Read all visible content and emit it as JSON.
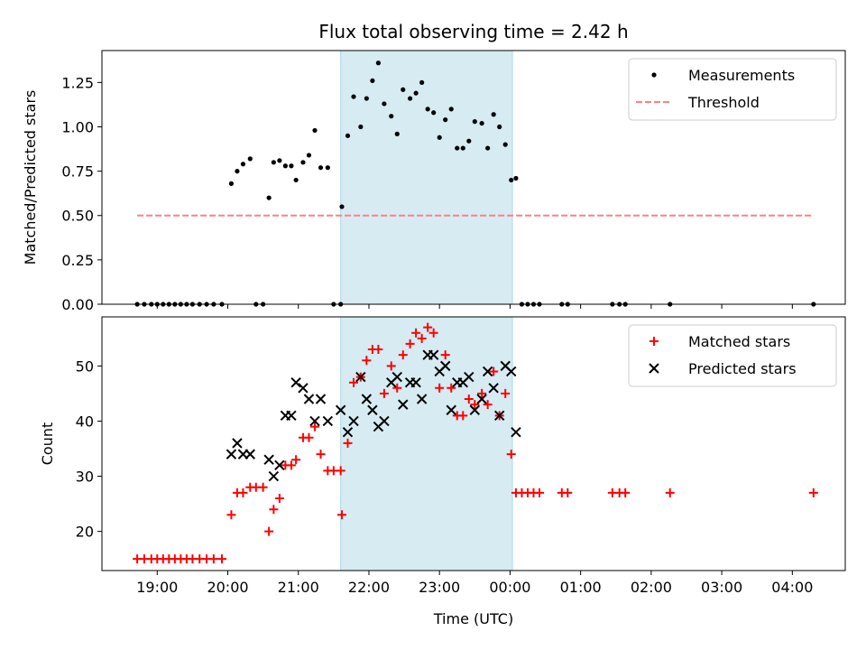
{
  "chart_data": {
    "title": "Flux total observing time = 2.42 h",
    "type": "scatter",
    "x_axis": {
      "label": "Time (UTC)",
      "unit": "hours since 18:00 UTC shown as clock times",
      "xlim": [
        "18:13",
        "04:45"
      ],
      "ticks": [
        "19:00",
        "20:00",
        "21:00",
        "22:00",
        "23:00",
        "00:00",
        "01:00",
        "02:00",
        "03:00",
        "04:00"
      ]
    },
    "highlight_band": {
      "start": "21:36",
      "end": "00:02",
      "color": "#add8e6"
    },
    "panels": [
      {
        "name": "ratio",
        "ylabel": "Matched/Predicted stars",
        "ylim": [
          0,
          1.43
        ],
        "yticks": [
          "0.00",
          "0.25",
          "0.50",
          "0.75",
          "1.00",
          "1.25"
        ],
        "legend": {
          "placement": "top-right",
          "entries": [
            "Measurements",
            "Threshold"
          ]
        },
        "series": [
          {
            "name": "Measurements",
            "style": "point",
            "color": "#000000",
            "points": [
              [
                "18:43",
                0
              ],
              [
                "18:49",
                0
              ],
              [
                "18:55",
                0
              ],
              [
                "19:00",
                0
              ],
              [
                "19:05",
                0
              ],
              [
                "19:10",
                0
              ],
              [
                "19:15",
                0
              ],
              [
                "19:20",
                0
              ],
              [
                "19:25",
                0
              ],
              [
                "19:30",
                0
              ],
              [
                "19:36",
                0
              ],
              [
                "19:42",
                0
              ],
              [
                "19:48",
                0
              ],
              [
                "19:55",
                0
              ],
              [
                "20:03",
                0.68
              ],
              [
                "20:08",
                0.75
              ],
              [
                "20:13",
                0.79
              ],
              [
                "20:19",
                0.82
              ],
              [
                "20:24",
                0
              ],
              [
                "20:30",
                0
              ],
              [
                "20:35",
                0.6
              ],
              [
                "20:39",
                0.8
              ],
              [
                "20:44",
                0.81
              ],
              [
                "20:49",
                0.78
              ],
              [
                "20:54",
                0.78
              ],
              [
                "20:58",
                0.7
              ],
              [
                "21:04",
                0.8
              ],
              [
                "21:09",
                0.84
              ],
              [
                "21:14",
                0.98
              ],
              [
                "21:19",
                0.77
              ],
              [
                "21:25",
                0.77
              ],
              [
                "21:30",
                0
              ],
              [
                "21:36",
                0
              ],
              [
                "21:37",
                0.55
              ],
              [
                "21:42",
                0.95
              ],
              [
                "21:47",
                1.17
              ],
              [
                "21:53",
                1.0
              ],
              [
                "21:58",
                1.16
              ],
              [
                "22:03",
                1.26
              ],
              [
                "22:08",
                1.36
              ],
              [
                "22:13",
                1.13
              ],
              [
                "22:19",
                1.06
              ],
              [
                "22:24",
                0.96
              ],
              [
                "22:29",
                1.21
              ],
              [
                "22:35",
                1.16
              ],
              [
                "22:40",
                1.19
              ],
              [
                "22:45",
                1.25
              ],
              [
                "22:50",
                1.1
              ],
              [
                "22:55",
                1.08
              ],
              [
                "23:00",
                0.94
              ],
              [
                "23:05",
                1.04
              ],
              [
                "23:10",
                1.1
              ],
              [
                "23:15",
                0.88
              ],
              [
                "23:20",
                0.88
              ],
              [
                "23:25",
                0.92
              ],
              [
                "23:30",
                1.03
              ],
              [
                "23:36",
                1.02
              ],
              [
                "23:41",
                0.88
              ],
              [
                "23:46",
                1.07
              ],
              [
                "23:51",
                1.0
              ],
              [
                "23:56",
                0.9
              ],
              [
                "00:01",
                0.7
              ],
              [
                "00:05",
                0.71
              ],
              [
                "00:10",
                0
              ],
              [
                "00:15",
                0
              ],
              [
                "00:20",
                0
              ],
              [
                "00:25",
                0
              ],
              [
                "00:44",
                0
              ],
              [
                "00:49",
                0
              ],
              [
                "01:27",
                0
              ],
              [
                "01:33",
                0
              ],
              [
                "01:38",
                0
              ],
              [
                "02:16",
                0
              ],
              [
                "04:18",
                0
              ]
            ]
          },
          {
            "name": "Threshold",
            "style": "dashed-line",
            "color": "#ff8080",
            "points": [
              [
                "18:43",
                0.5
              ],
              [
                "04:18",
                0.5
              ]
            ]
          }
        ]
      },
      {
        "name": "counts",
        "ylabel": "Count",
        "ylim": [
          12.9,
          58.9
        ],
        "yticks": [
          "20",
          "30",
          "40",
          "50"
        ],
        "legend": {
          "placement": "top-right",
          "entries": [
            "Matched stars",
            "Predicted stars"
          ]
        },
        "series": [
          {
            "name": "Matched stars",
            "style": "plus",
            "color": "#ff0000",
            "points": [
              [
                "18:43",
                15
              ],
              [
                "18:49",
                15
              ],
              [
                "18:55",
                15
              ],
              [
                "19:00",
                15
              ],
              [
                "19:05",
                15
              ],
              [
                "19:10",
                15
              ],
              [
                "19:15",
                15
              ],
              [
                "19:20",
                15
              ],
              [
                "19:25",
                15
              ],
              [
                "19:30",
                15
              ],
              [
                "19:36",
                15
              ],
              [
                "19:42",
                15
              ],
              [
                "19:48",
                15
              ],
              [
                "19:55",
                15
              ],
              [
                "20:03",
                23
              ],
              [
                "20:08",
                27
              ],
              [
                "20:13",
                27
              ],
              [
                "20:19",
                28
              ],
              [
                "20:24",
                28
              ],
              [
                "20:30",
                28
              ],
              [
                "20:35",
                20
              ],
              [
                "20:39",
                24
              ],
              [
                "20:44",
                26
              ],
              [
                "20:49",
                32
              ],
              [
                "20:54",
                32
              ],
              [
                "20:58",
                33
              ],
              [
                "21:04",
                37
              ],
              [
                "21:09",
                37
              ],
              [
                "21:14",
                39
              ],
              [
                "21:19",
                34
              ],
              [
                "21:25",
                31
              ],
              [
                "21:30",
                31
              ],
              [
                "21:36",
                31
              ],
              [
                "21:37",
                23
              ],
              [
                "21:42",
                36
              ],
              [
                "21:47",
                47
              ],
              [
                "21:53",
                48
              ],
              [
                "21:58",
                51
              ],
              [
                "22:03",
                53
              ],
              [
                "22:08",
                53
              ],
              [
                "22:13",
                45
              ],
              [
                "22:19",
                50
              ],
              [
                "22:24",
                46
              ],
              [
                "22:29",
                52
              ],
              [
                "22:35",
                54
              ],
              [
                "22:40",
                56
              ],
              [
                "22:45",
                55
              ],
              [
                "22:50",
                57
              ],
              [
                "22:55",
                56
              ],
              [
                "23:00",
                46
              ],
              [
                "23:05",
                52
              ],
              [
                "23:10",
                46
              ],
              [
                "23:15",
                41
              ],
              [
                "23:20",
                41
              ],
              [
                "23:25",
                44
              ],
              [
                "23:30",
                43
              ],
              [
                "23:36",
                45
              ],
              [
                "23:41",
                43
              ],
              [
                "23:46",
                49
              ],
              [
                "23:51",
                41
              ],
              [
                "23:56",
                45
              ],
              [
                "00:01",
                34
              ],
              [
                "00:05",
                27
              ],
              [
                "00:10",
                27
              ],
              [
                "00:15",
                27
              ],
              [
                "00:20",
                27
              ],
              [
                "00:25",
                27
              ],
              [
                "00:44",
                27
              ],
              [
                "00:49",
                27
              ],
              [
                "01:27",
                27
              ],
              [
                "01:33",
                27
              ],
              [
                "01:38",
                27
              ],
              [
                "02:16",
                27
              ],
              [
                "04:18",
                27
              ]
            ]
          },
          {
            "name": "Predicted stars",
            "style": "x",
            "color": "#000000",
            "points": [
              [
                "20:03",
                34
              ],
              [
                "20:08",
                36
              ],
              [
                "20:13",
                34
              ],
              [
                "20:19",
                34
              ],
              [
                "20:35",
                33
              ],
              [
                "20:39",
                30
              ],
              [
                "20:44",
                32
              ],
              [
                "20:49",
                41
              ],
              [
                "20:54",
                41
              ],
              [
                "20:58",
                47
              ],
              [
                "21:04",
                46
              ],
              [
                "21:09",
                44
              ],
              [
                "21:14",
                40
              ],
              [
                "21:19",
                44
              ],
              [
                "21:25",
                40
              ],
              [
                "21:36",
                42
              ],
              [
                "21:42",
                38
              ],
              [
                "21:47",
                40
              ],
              [
                "21:53",
                48
              ],
              [
                "21:58",
                44
              ],
              [
                "22:03",
                42
              ],
              [
                "22:08",
                39
              ],
              [
                "22:13",
                40
              ],
              [
                "22:19",
                47
              ],
              [
                "22:24",
                48
              ],
              [
                "22:29",
                43
              ],
              [
                "22:35",
                47
              ],
              [
                "22:40",
                47
              ],
              [
                "22:45",
                44
              ],
              [
                "22:50",
                52
              ],
              [
                "22:55",
                52
              ],
              [
                "23:00",
                49
              ],
              [
                "23:05",
                50
              ],
              [
                "23:10",
                42
              ],
              [
                "23:15",
                47
              ],
              [
                "23:20",
                47
              ],
              [
                "23:25",
                48
              ],
              [
                "23:30",
                42
              ],
              [
                "23:36",
                44
              ],
              [
                "23:41",
                49
              ],
              [
                "23:46",
                46
              ],
              [
                "23:51",
                41
              ],
              [
                "23:56",
                50
              ],
              [
                "00:01",
                49
              ],
              [
                "00:05",
                38
              ]
            ]
          }
        ]
      }
    ]
  }
}
